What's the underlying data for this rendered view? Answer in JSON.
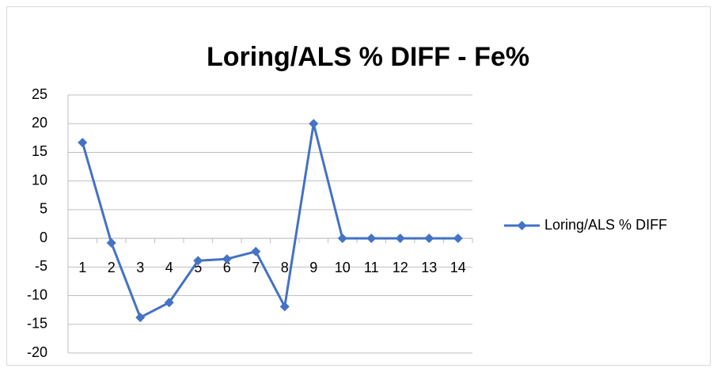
{
  "chart_data": {
    "type": "line",
    "title": "Loring/ALS % DIFF - Fe%",
    "categories": [
      "1",
      "2",
      "3",
      "4",
      "5",
      "6",
      "7",
      "8",
      "9",
      "10",
      "11",
      "12",
      "13",
      "14"
    ],
    "series": [
      {
        "name": "Loring/ALS % DIFF",
        "color": "#4472c4",
        "values": [
          16.7,
          -0.8,
          -13.8,
          -11.2,
          -3.9,
          -3.6,
          -2.3,
          -11.9,
          20,
          0,
          0,
          0,
          0,
          0
        ]
      }
    ],
    "ylim": [
      -20,
      25
    ],
    "yticks": [
      -20,
      -15,
      -10,
      -5,
      0,
      5,
      10,
      15,
      20,
      25
    ],
    "grid": true,
    "legend": "right"
  }
}
